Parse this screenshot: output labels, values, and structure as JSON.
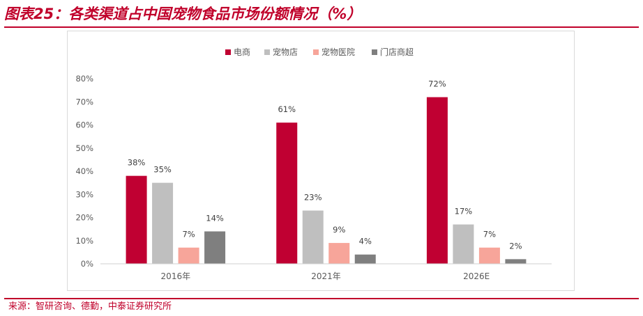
{
  "figure": {
    "title": "图表25：各类渠道占中国宠物食品市场份额情况（%）",
    "source": "来源：智研咨询、德勤，中泰证券研究所"
  },
  "colors": {
    "accent": "#c0002a",
    "series": [
      "#c00032",
      "#bfbfbf",
      "#f7a59a",
      "#7f7f7f"
    ]
  },
  "chart_data": {
    "type": "bar",
    "title": "",
    "xlabel": "",
    "ylabel": "",
    "categories": [
      "2016年",
      "2021年",
      "2026E"
    ],
    "series": [
      {
        "name": "电商",
        "values": [
          38,
          61,
          72
        ]
      },
      {
        "name": "宠物店",
        "values": [
          35,
          23,
          17
        ]
      },
      {
        "name": "宠物医院",
        "values": [
          7,
          9,
          7
        ]
      },
      {
        "name": "门店商超",
        "values": [
          14,
          4,
          2
        ]
      }
    ],
    "ylim": [
      0,
      80
    ],
    "yticks": [
      0,
      10,
      20,
      30,
      40,
      50,
      60,
      70,
      80
    ],
    "ytick_labels": [
      "0%",
      "10%",
      "20%",
      "30%",
      "40%",
      "50%",
      "60%",
      "70%",
      "80%"
    ],
    "value_suffix": "%",
    "legend_position": "top",
    "grid": false
  }
}
